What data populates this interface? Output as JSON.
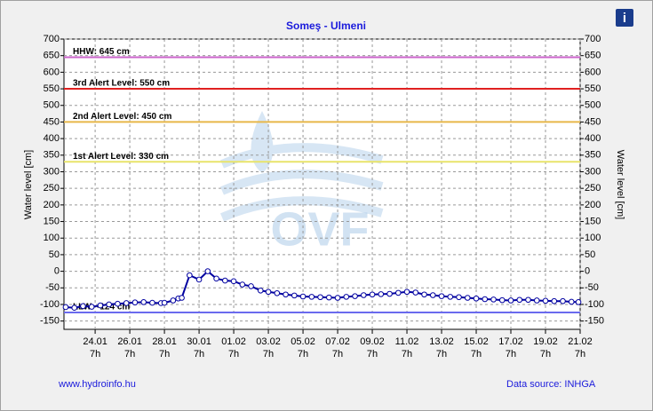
{
  "chart_data": {
    "type": "line",
    "title": "Someş - Ulmeni",
    "y_label": "Water level [cm]",
    "y2_label": "Water level [cm]",
    "logo_text": "OVF",
    "footer_left": "www.hydroinfo.hu",
    "footer_right": "Data source: INHGA",
    "info_icon": "i",
    "xlim": [
      -1.8,
      28
    ],
    "xticks": [
      {
        "value": 0,
        "label": "24.01",
        "time": "7h"
      },
      {
        "value": 2,
        "label": "26.01",
        "time": "7h"
      },
      {
        "value": 4,
        "label": "28.01",
        "time": "7h"
      },
      {
        "value": 6,
        "label": "30.01",
        "time": "7h"
      },
      {
        "value": 8,
        "label": "01.02",
        "time": "7h"
      },
      {
        "value": 10,
        "label": "03.02",
        "time": "7h"
      },
      {
        "value": 12,
        "label": "05.02",
        "time": "7h"
      },
      {
        "value": 14,
        "label": "07.02",
        "time": "7h"
      },
      {
        "value": 16,
        "label": "09.02",
        "time": "7h"
      },
      {
        "value": 18,
        "label": "11.02",
        "time": "7h"
      },
      {
        "value": 20,
        "label": "13.02",
        "time": "7h"
      },
      {
        "value": 22,
        "label": "15.02",
        "time": "7h"
      },
      {
        "value": 24,
        "label": "17.02",
        "time": "7h"
      },
      {
        "value": 26,
        "label": "19.02",
        "time": "7h"
      },
      {
        "value": 28,
        "label": "21.02",
        "time": "7h"
      }
    ],
    "ylim": [
      -175,
      700
    ],
    "yticks": [
      -150,
      -100,
      -50,
      0,
      50,
      100,
      150,
      200,
      250,
      300,
      350,
      400,
      450,
      500,
      550,
      600,
      650,
      700
    ],
    "y2lim": [
      -175,
      700
    ],
    "y2ticks": [
      -150,
      -100,
      -50,
      0,
      50,
      100,
      150,
      200,
      250,
      300,
      350,
      400,
      450,
      500,
      550,
      600,
      650,
      700
    ],
    "grid": true,
    "reference_lines": [
      {
        "label": "HHW: 645 cm",
        "value": 645,
        "color": "#cc66cc"
      },
      {
        "label": "3rd Alert Level: 550 cm",
        "value": 550,
        "color": "#e02020"
      },
      {
        "label": "2nd Alert Level: 450 cm",
        "value": 450,
        "color": "#e8b84a"
      },
      {
        "label": "1st Alert Level: 330 cm",
        "value": 330,
        "color": "#e8e46a"
      },
      {
        "label": "LLW: -124 cm",
        "value": -124,
        "color": "#6a6aee"
      }
    ],
    "series": [
      {
        "color": "#0000a0",
        "x": [
          -1.7,
          -1.2,
          -0.7,
          -0.2,
          0.3,
          0.8,
          1.3,
          1.8,
          2.3,
          2.8,
          3.3,
          3.8,
          4.0,
          4.5,
          4.8,
          5.0,
          5.45,
          6.0,
          6.5,
          7.0,
          7.5,
          8.0,
          8.5,
          9.0,
          9.55,
          10,
          10.5,
          11,
          11.5,
          12,
          12.5,
          13,
          13.5,
          14,
          14.5,
          15,
          15.5,
          16,
          16.5,
          17,
          17.5,
          18,
          18.5,
          19,
          19.5,
          20,
          20.5,
          21,
          21.5,
          22,
          22.5,
          23,
          23.5,
          24,
          24.5,
          25,
          25.5,
          26,
          26.5,
          27,
          27.5,
          27.9
        ],
        "values": [
          -108,
          -110,
          -105,
          -107,
          -103,
          -100,
          -98,
          -96,
          -94,
          -93,
          -95,
          -96,
          -95,
          -88,
          -82,
          -80,
          -12,
          -25,
          0,
          -22,
          -28,
          -30,
          -40,
          -45,
          -58,
          -62,
          -66,
          -70,
          -73,
          -76,
          -77,
          -78,
          -79,
          -80,
          -77,
          -75,
          -72,
          -70,
          -69,
          -68,
          -65,
          -62,
          -64,
          -70,
          -72,
          -75,
          -77,
          -78,
          -80,
          -82,
          -84,
          -85,
          -87,
          -88,
          -86,
          -86,
          -88,
          -89,
          -90,
          -90,
          -92,
          -93
        ]
      }
    ]
  }
}
